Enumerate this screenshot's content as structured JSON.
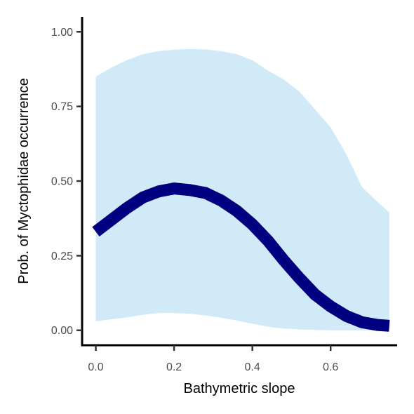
{
  "chart_data": {
    "type": "line",
    "title": "",
    "xlabel": "Bathymetric slope",
    "ylabel": "Prob. of  Myctophidae  occurrence",
    "xlim": [
      -0.035,
      0.77
    ],
    "ylim": [
      -0.05,
      1.05
    ],
    "xticks": [
      0.0,
      0.2,
      0.4,
      0.6
    ],
    "xtick_labels": [
      "0.0",
      "0.2",
      "0.4",
      "0.6"
    ],
    "yticks": [
      0.0,
      0.25,
      0.5,
      0.75,
      1.0
    ],
    "ytick_labels": [
      "0.00",
      "0.25",
      "0.50",
      "0.75",
      "1.00"
    ],
    "grid": false,
    "series": [
      {
        "x": [
          0.0,
          0.04,
          0.08,
          0.12,
          0.16,
          0.2,
          0.24,
          0.28,
          0.32,
          0.36,
          0.4,
          0.44,
          0.48,
          0.52,
          0.56,
          0.6,
          0.64,
          0.68,
          0.72,
          0.75
        ],
        "y": [
          0.33,
          0.37,
          0.41,
          0.445,
          0.465,
          0.475,
          0.47,
          0.46,
          0.435,
          0.4,
          0.355,
          0.3,
          0.235,
          0.175,
          0.12,
          0.08,
          0.048,
          0.027,
          0.018,
          0.015
        ],
        "lower": [
          0.03,
          0.037,
          0.043,
          0.052,
          0.058,
          0.058,
          0.055,
          0.05,
          0.042,
          0.033,
          0.022,
          0.012,
          0.006,
          0.003,
          0.001,
          0.0,
          0.0,
          0.0,
          0.0,
          0.0
        ],
        "upper": [
          0.85,
          0.88,
          0.905,
          0.925,
          0.935,
          0.94,
          0.942,
          0.941,
          0.935,
          0.925,
          0.905,
          0.87,
          0.84,
          0.8,
          0.74,
          0.68,
          0.59,
          0.48,
          0.43,
          0.395
        ],
        "color": "#000080",
        "ribbon_color": "#d0eaf7"
      }
    ]
  }
}
